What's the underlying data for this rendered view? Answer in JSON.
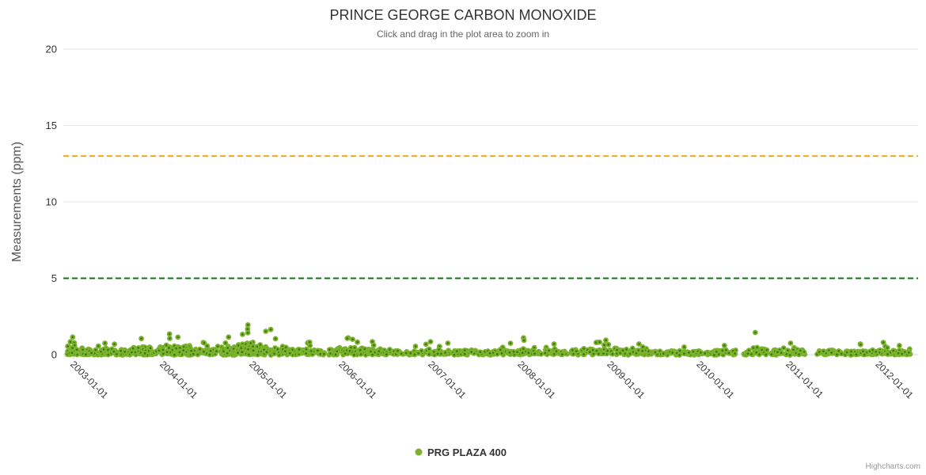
{
  "credits": "Highcharts.com",
  "colors": {
    "grid": "#E6E6E6",
    "axis": "#CCD6EB",
    "title": "#333333",
    "subtitle": "#666666",
    "series_green": "#7CB32E"
  },
  "chart_data": {
    "type": "scatter",
    "title": "PRINCE GEORGE CARBON MONOXIDE",
    "subtitle": "Click and drag in the plot area to zoom in",
    "ylabel": "Measurements (ppm)",
    "xlabel": "",
    "ylim": [
      0,
      20
    ],
    "yticks": [
      0,
      5,
      10,
      15,
      20
    ],
    "xlim_years": [
      2002.885,
      2012.44
    ],
    "xticks": [
      {
        "year": 2003,
        "label": "2003-01-01"
      },
      {
        "year": 2004,
        "label": "2004-01-01"
      },
      {
        "year": 2005,
        "label": "2005-01-01"
      },
      {
        "year": 2006,
        "label": "2006-01-01"
      },
      {
        "year": 2007,
        "label": "2007-01-01"
      },
      {
        "year": 2008,
        "label": "2008-01-01"
      },
      {
        "year": 2009,
        "label": "2009-01-01"
      },
      {
        "year": 2010,
        "label": "2010-01-01"
      },
      {
        "year": 2011,
        "label": "2011-01-01"
      },
      {
        "year": 2012,
        "label": "2012-01-01"
      }
    ],
    "grid": true,
    "legend_position": "bottom-center",
    "plot_lines": [
      {
        "name": "amber-threshold",
        "value": 13,
        "color": "#F5A71E",
        "style": "dashed",
        "width": 2
      },
      {
        "name": "green-threshold",
        "value": 5,
        "color": "#0C760C",
        "style": "dashed",
        "width": 2
      }
    ],
    "series": [
      {
        "name": "PRG PLAZA 400",
        "type": "scatter",
        "marker": {
          "fill": "#7CB32E",
          "core": "#3E7A0C",
          "radius": 3.4,
          "core_radius": 1.4
        },
        "seed": 123456789,
        "value_band_ppm": [
          0,
          2
        ],
        "segments": [
          {
            "from": 2002.93,
            "to": 2003.1,
            "n": 40,
            "base": 0.55,
            "peak": 1.15,
            "pf": 0.35
          },
          {
            "from": 2003.1,
            "to": 2003.6,
            "n": 75,
            "base": 0.35,
            "peak": 0.75,
            "pf": 0.5
          },
          {
            "from": 2003.6,
            "to": 2003.95,
            "n": 62,
            "base": 0.5,
            "peak": 1.05,
            "pf": 0.45
          },
          {
            "from": 2003.95,
            "to": 2004.3,
            "n": 72,
            "base": 0.6,
            "peak": 1.35,
            "pf": 0.35
          },
          {
            "from": 2004.3,
            "to": 2004.6,
            "n": 48,
            "base": 0.4,
            "peak": 0.8,
            "pf": 0.5
          },
          {
            "from": 2004.6,
            "to": 2004.82,
            "n": 40,
            "base": 0.55,
            "peak": 1.15,
            "pf": 0.6
          },
          {
            "from": 2004.82,
            "to": 2005.12,
            "n": 68,
            "base": 0.75,
            "peak": 1.95,
            "pf": 0.43
          },
          {
            "from": 2005.12,
            "to": 2005.4,
            "n": 50,
            "base": 0.55,
            "peak": 1.65,
            "pf": 0.3
          },
          {
            "from": 2005.4,
            "to": 2005.85,
            "n": 62,
            "base": 0.35,
            "peak": 0.8,
            "pf": 0.5
          },
          {
            "from": 2005.85,
            "to": 2006.25,
            "n": 64,
            "base": 0.5,
            "peak": 1.1,
            "pf": 0.55
          },
          {
            "from": 2006.25,
            "to": 2006.55,
            "n": 44,
            "base": 0.38,
            "peak": 0.85,
            "pf": 0.3
          },
          {
            "from": 2006.55,
            "to": 2007.35,
            "n": 100,
            "base": 0.26,
            "peak": 0.85,
            "pf": 0.55
          },
          {
            "from": 2007.35,
            "to": 2008.15,
            "n": 100,
            "base": 0.32,
            "peak": 1.1,
            "pf": 0.85
          },
          {
            "from": 2008.15,
            "to": 2008.7,
            "n": 66,
            "base": 0.3,
            "peak": 0.7,
            "pf": 0.4
          },
          {
            "from": 2008.7,
            "to": 2009.2,
            "n": 62,
            "base": 0.45,
            "peak": 0.95,
            "pf": 0.5
          },
          {
            "from": 2009.2,
            "to": 2009.5,
            "n": 42,
            "base": 0.3,
            "peak": 0.7,
            "pf": 0.4
          },
          {
            "from": 2009.5,
            "to": 2010.15,
            "n": 85,
            "base": 0.22,
            "peak": 0.5,
            "pf": 0.5
          },
          {
            "from": 2010.15,
            "to": 2010.4,
            "n": 34,
            "base": 0.28,
            "peak": 0.6,
            "pf": 0.5
          },
          {
            "from": 2010.49,
            "to": 2010.75,
            "n": 34,
            "base": 0.4,
            "peak": 1.45,
            "pf": 0.5
          },
          {
            "from": 2010.8,
            "to": 2011.19,
            "n": 55,
            "base": 0.32,
            "peak": 0.75,
            "pf": 0.55
          },
          {
            "from": 2011.31,
            "to": 2012.37,
            "n": 140,
            "base": 0.28,
            "peak": 0.8,
            "pf": 0.7
          }
        ]
      }
    ]
  }
}
